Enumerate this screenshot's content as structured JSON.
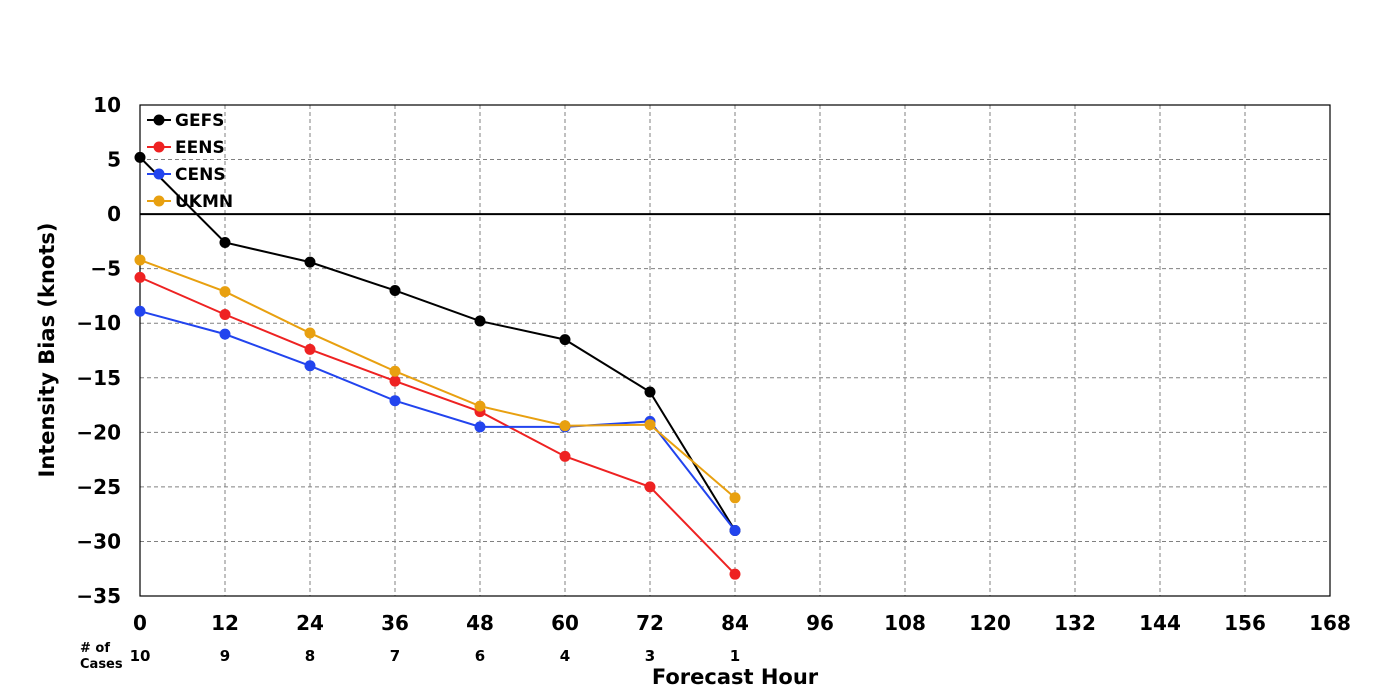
{
  "chart_data": {
    "type": "line",
    "xlabel": "Forecast Hour",
    "ylabel": "Intensity Bias (knots)",
    "xlim": [
      0,
      168
    ],
    "ylim": [
      -35,
      10
    ],
    "x_ticks": [
      0,
      12,
      24,
      36,
      48,
      60,
      72,
      84,
      96,
      108,
      120,
      132,
      144,
      156,
      168
    ],
    "y_ticks": [
      10,
      5,
      0,
      -5,
      -10,
      -15,
      -20,
      -25,
      -30,
      -35
    ],
    "x_tick_labels": [
      "0",
      "12",
      "24",
      "36",
      "48",
      "60",
      "72",
      "84",
      "96",
      "108",
      "120",
      "132",
      "144",
      "156",
      "168"
    ],
    "y_tick_labels": [
      "10",
      "5",
      "0",
      "−5",
      "−10",
      "−15",
      "−20",
      "−25",
      "−30",
      "−35"
    ],
    "grid": true,
    "grid_style": "dashed",
    "zero_line": true,
    "legend_position": "top-left",
    "series": [
      {
        "name": "GEFS",
        "color": "#000000",
        "x": [
          0,
          12,
          24,
          36,
          48,
          60,
          72,
          84
        ],
        "values": [
          5.2,
          -2.6,
          -4.4,
          -7.0,
          -9.8,
          -11.5,
          -16.3,
          -29.0
        ]
      },
      {
        "name": "EENS",
        "color": "#ee2222",
        "x": [
          0,
          12,
          24,
          36,
          48,
          60,
          72,
          84
        ],
        "values": [
          -5.8,
          -9.2,
          -12.4,
          -15.3,
          -18.1,
          -22.2,
          -25.0,
          -33.0
        ]
      },
      {
        "name": "CENS",
        "color": "#2244ee",
        "x": [
          0,
          12,
          24,
          36,
          48,
          60,
          72,
          84
        ],
        "values": [
          -8.9,
          -11.0,
          -13.9,
          -17.1,
          -19.5,
          -19.5,
          -19.0,
          -29.0
        ]
      },
      {
        "name": "UKMN",
        "color": "#e8a010",
        "x": [
          0,
          12,
          24,
          36,
          48,
          60,
          72,
          84
        ],
        "values": [
          -4.2,
          -7.1,
          -10.9,
          -14.4,
          -17.6,
          -19.4,
          -19.3,
          -26.0
        ]
      }
    ],
    "cases": {
      "label_line1": "# of",
      "label_line2": "Cases",
      "x": [
        0,
        12,
        24,
        36,
        48,
        60,
        72,
        84
      ],
      "counts": [
        "10",
        "9",
        "8",
        "7",
        "6",
        "4",
        "3",
        "1"
      ]
    }
  }
}
